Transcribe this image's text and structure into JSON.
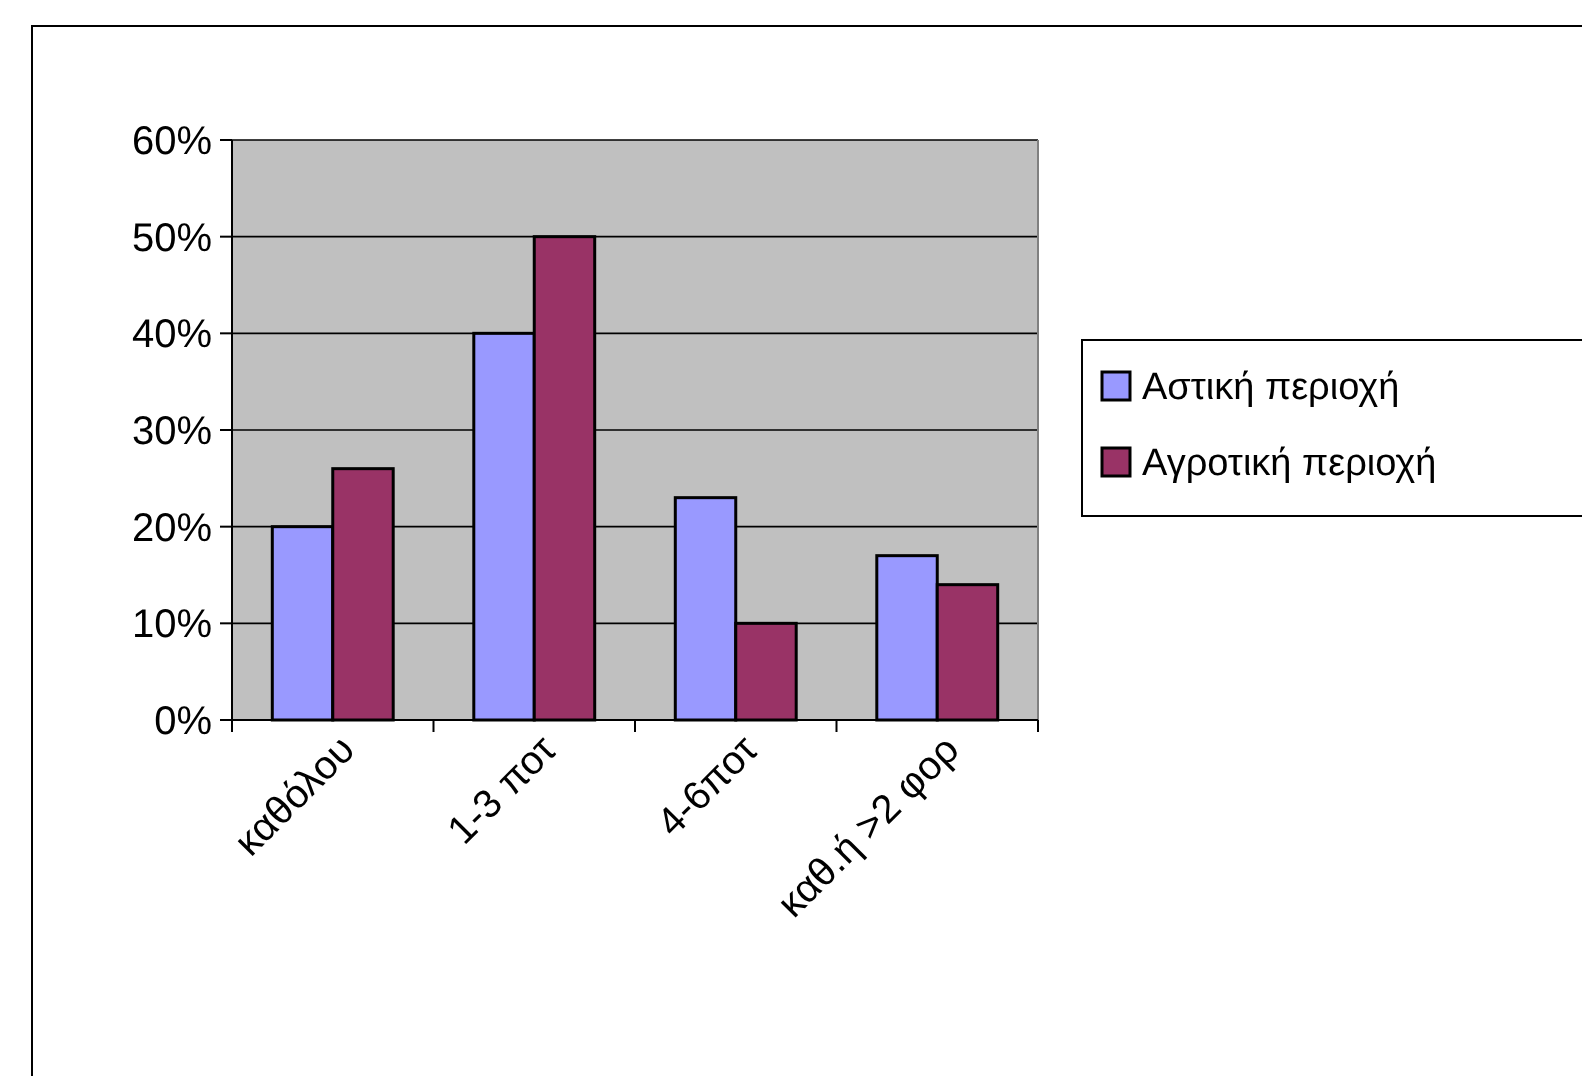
{
  "chart_data": {
    "type": "bar",
    "categories": [
      "καθόλου",
      "1-3 ποτ",
      "4-6ποτ",
      "καθ.ή >2 φορ"
    ],
    "series": [
      {
        "name": "Αστική περιοχή",
        "color": "#9999ff",
        "values": [
          20,
          40,
          23,
          17
        ]
      },
      {
        "name": "Αγροτική περιοχή",
        "color": "#993366",
        "values": [
          26,
          50,
          10,
          14
        ]
      }
    ],
    "ylim": [
      0,
      60
    ],
    "yticks": [
      {
        "value": 0,
        "label": "0%"
      },
      {
        "value": 10,
        "label": "10%"
      },
      {
        "value": 20,
        "label": "20%"
      },
      {
        "value": 30,
        "label": "30%"
      },
      {
        "value": 40,
        "label": "40%"
      },
      {
        "value": 50,
        "label": "50%"
      },
      {
        "value": 60,
        "label": "60%"
      }
    ],
    "grid": "y",
    "legend": "right"
  }
}
